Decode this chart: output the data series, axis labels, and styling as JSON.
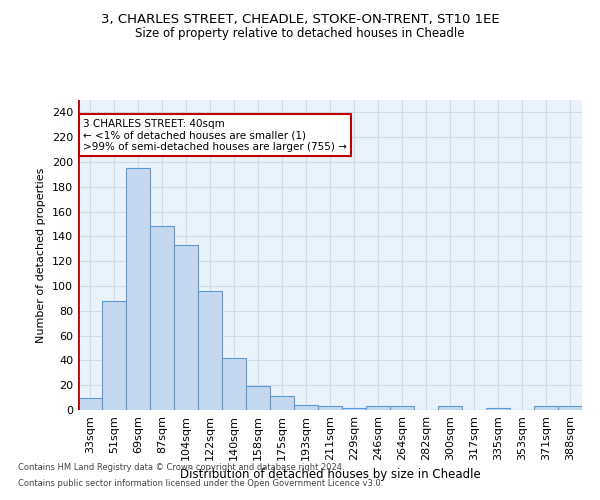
{
  "title1": "3, CHARLES STREET, CHEADLE, STOKE-ON-TRENT, ST10 1EE",
  "title2": "Size of property relative to detached houses in Cheadle",
  "xlabel": "Distribution of detached houses by size in Cheadle",
  "ylabel": "Number of detached properties",
  "categories": [
    "33sqm",
    "51sqm",
    "69sqm",
    "87sqm",
    "104sqm",
    "122sqm",
    "140sqm",
    "158sqm",
    "175sqm",
    "193sqm",
    "211sqm",
    "229sqm",
    "246sqm",
    "264sqm",
    "282sqm",
    "300sqm",
    "317sqm",
    "335sqm",
    "353sqm",
    "371sqm",
    "388sqm"
  ],
  "values": [
    10,
    88,
    195,
    148,
    133,
    96,
    42,
    19,
    11,
    4,
    3,
    2,
    3,
    3,
    0,
    3,
    0,
    2,
    0,
    3,
    3
  ],
  "bar_color": "#c5d8f0",
  "bar_edge_color": "#5b9bd5",
  "highlight_color": "#c00000",
  "annotation_text": "3 CHARLES STREET: 40sqm\n← <1% of detached houses are smaller (1)\n>99% of semi-detached houses are larger (755) →",
  "annotation_box_color": "#ffffff",
  "annotation_box_edge": "#c00000",
  "ylim": [
    0,
    250
  ],
  "yticks": [
    0,
    20,
    40,
    60,
    80,
    100,
    120,
    140,
    160,
    180,
    200,
    220,
    240
  ],
  "footer1": "Contains HM Land Registry data © Crown copyright and database right 2024.",
  "footer2": "Contains public sector information licensed under the Open Government Licence v3.0.",
  "grid_color": "#d0dce8",
  "bg_color": "#eaf2fb"
}
